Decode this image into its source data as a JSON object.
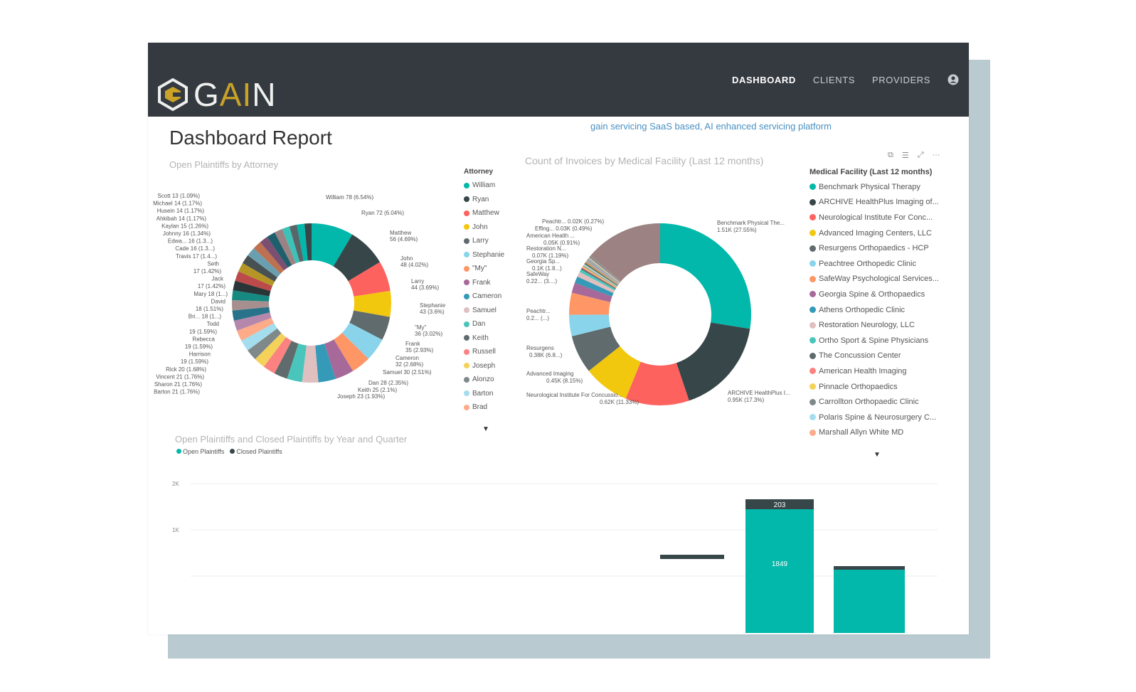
{
  "navbar": {
    "logo_text": "GAIN",
    "items": [
      {
        "label": "DASHBOARD",
        "active": true
      },
      {
        "label": "CLIENTS",
        "active": false
      },
      {
        "label": "PROVIDERS",
        "active": false
      }
    ],
    "user_icon": "user-circle-icon"
  },
  "page": {
    "title": "Dashboard Report",
    "tagline": "gain servicing SaaS based, AI enhanced servicing platform"
  },
  "colors": {
    "navbar": "#343a40",
    "teal": "#01b8aa",
    "dark": "#374649",
    "red": "#fd625e",
    "yellow": "#f2c80f",
    "gray": "#5f6b6d",
    "lightblue": "#8ad4eb",
    "orange": "#fe9666",
    "purple": "#a66999",
    "blue": "#3599b8",
    "pink": "#dfbfbf"
  },
  "attorney_panel": {
    "title": "Open Plaintiffs by Attorney",
    "legend_title": "Attorney",
    "legend": [
      {
        "name": "William",
        "color": "#01b8aa"
      },
      {
        "name": "Ryan",
        "color": "#374649"
      },
      {
        "name": "Matthew",
        "color": "#fd625e"
      },
      {
        "name": "John",
        "color": "#f2c80f"
      },
      {
        "name": "Larry",
        "color": "#5f6b6d"
      },
      {
        "name": "Stephanie",
        "color": "#8ad4eb"
      },
      {
        "name": "\"My\"",
        "color": "#fe9666"
      },
      {
        "name": "Frank",
        "color": "#a66999"
      },
      {
        "name": "Cameron",
        "color": "#3599b8"
      },
      {
        "name": "Samuel",
        "color": "#dfbfbf"
      },
      {
        "name": "Dan",
        "color": "#4ac5bb"
      },
      {
        "name": "Keith",
        "color": "#5f6b6d"
      },
      {
        "name": "Russell",
        "color": "#fb8281"
      },
      {
        "name": "Joseph",
        "color": "#f4d25a"
      },
      {
        "name": "Alonzo",
        "color": "#7f898a"
      },
      {
        "name": "Barton",
        "color": "#a4ddee"
      },
      {
        "name": "Brad",
        "color": "#fdab89"
      }
    ],
    "labels_right": [
      "William 78 (6.54%)",
      "Ryan 72 (6.04%)",
      "Matthew",
      "56 (4.69%)",
      "John",
      "48 (4.02%)",
      "Larry",
      "44 (3.69%)",
      "Stephanie",
      "43 (3.6%)",
      "\"My\"",
      "36 (3.02%)",
      "Frank",
      "35 (2.93%)",
      "Cameron",
      "32 (2.68%)",
      "Samuel 30 (2.51%)",
      "Dan 28 (2.35%)",
      "Keith 25 (2.1%)",
      "Joseph 23 (1.93%)"
    ],
    "labels_left": [
      "Scott 13 (1.09%)",
      "Michael 14 (1.17%)",
      "Husein 14 (1.17%)",
      "Ahkibah 14 (1.17%)",
      "Kaylan 15 (1.26%)",
      "Johnny 16 (1.34%)",
      "Edwa... 16 (1.3...)",
      "Cade 16 (1.3...)",
      "Travis 17 (1.4...)",
      "Seth",
      "17 (1.42%)",
      "Jack",
      "17 (1.42%)",
      "Mary 18 (1...)",
      "David",
      "18 (1.51%)",
      "Bri... 18 (1...)",
      "Todd",
      "19 (1.59%)",
      "Rebecca",
      "19 (1.59%)",
      "Harrison",
      "19 (1.59%)",
      "Rick 20 (1.68%)",
      "Vincent 21 (1.76%)",
      "Sharon 21 (1.76%)",
      "Barton 21 (1.76%)"
    ]
  },
  "invoice_panel": {
    "title": "Count of Invoices by Medical Facility (Last 12 months)",
    "legend_title": "Medical Facility (Last 12 months)",
    "legend": [
      {
        "name": "Benchmark Physical Therapy",
        "color": "#01b8aa"
      },
      {
        "name": "ARCHIVE HealthPlus Imaging of...",
        "color": "#374649"
      },
      {
        "name": "Neurological Institute For Conc...",
        "color": "#fd625e"
      },
      {
        "name": "Advanced Imaging Centers, LLC",
        "color": "#f2c80f"
      },
      {
        "name": "Resurgens Orthopaedics - HCP",
        "color": "#5f6b6d"
      },
      {
        "name": "Peachtree Orthopedic Clinic",
        "color": "#8ad4eb"
      },
      {
        "name": "SafeWay Psychological Services...",
        "color": "#fe9666"
      },
      {
        "name": "Georgia Spine & Orthopaedics",
        "color": "#a66999"
      },
      {
        "name": "Athens Orthopedic Clinic",
        "color": "#3599b8"
      },
      {
        "name": "Restoration Neurology, LLC",
        "color": "#dfbfbf"
      },
      {
        "name": "Ortho Sport & Spine Physicians",
        "color": "#4ac5bb"
      },
      {
        "name": "The Concussion Center",
        "color": "#5f6b6d"
      },
      {
        "name": "American Health Imaging",
        "color": "#fb8281"
      },
      {
        "name": "Pinnacle Orthopaedics",
        "color": "#f4d25a"
      },
      {
        "name": "Carrollton Orthopaedic Clinic",
        "color": "#7f898a"
      },
      {
        "name": "Polaris Spine & Neurosurgery C...",
        "color": "#a4ddee"
      },
      {
        "name": "Marshall Allyn White MD",
        "color": "#fdab89"
      }
    ],
    "labels": {
      "benchmark": "Benchmark Physical The...",
      "benchmark_val": "1.51K (27.55%)",
      "archive": "ARCHIVE HealthPlus I...",
      "archive_val": "0.95K (17.3%)",
      "neuro": "Neurological Institute For Concussio...",
      "neuro_val": "0.62K (11.33%)",
      "advanced": "Advanced Imaging",
      "advanced_val": "0.45K (8.15%)",
      "resurgens": "Resurgens",
      "resurgens_val": "0.38K (6.8...)",
      "peachtr": "Peachtr...",
      "peachtr_val": "0.2... (...)",
      "safeway": "SafeWay",
      "safeway_val": "0.22... (3....)",
      "georgia": "Georgia Sp...",
      "georgia_val": "0.1K (1.8...)",
      "restoration": "Restoration N...",
      "restoration_val": "0.07K (1.19%)",
      "american": "American Health ...",
      "american_val": "0.05K (0.91%)",
      "effing": "Effing... 0.03K (0.49%)",
      "peachtr2": "Peachtr... 0.02K (0.27%)"
    }
  },
  "bar_panel": {
    "title": "Open Plaintiffs and Closed Plaintiffs by Year and Quarter",
    "legend": [
      {
        "name": "Open Plaintiffs",
        "color": "#01b8aa"
      },
      {
        "name": "Closed Plaintiffs",
        "color": "#374649"
      }
    ],
    "y_ticks": [
      "2K",
      "1K"
    ],
    "bar_labels": {
      "closed": "203",
      "open": "1849"
    }
  },
  "chart_data": [
    {
      "type": "pie",
      "title": "Open Plaintiffs by Attorney",
      "categories": [
        "William",
        "Ryan",
        "Matthew",
        "John",
        "Larry",
        "Stephanie",
        "\"My\"",
        "Frank",
        "Cameron",
        "Samuel",
        "Dan",
        "Keith",
        "Joseph",
        "Barton",
        "Sharon",
        "Vincent",
        "Rick",
        "Harrison",
        "Rebecca",
        "Todd",
        "Bri...",
        "David",
        "Mary",
        "Jack",
        "Seth",
        "Travis",
        "Cade",
        "Edwa...",
        "Johnny",
        "Kaylan",
        "Ahkibah",
        "Husein",
        "Michael",
        "Scott"
      ],
      "values": [
        78,
        72,
        56,
        48,
        44,
        43,
        36,
        35,
        32,
        30,
        28,
        25,
        23,
        21,
        21,
        21,
        20,
        19,
        19,
        19,
        18,
        18,
        18,
        17,
        17,
        17,
        16,
        16,
        16,
        15,
        14,
        14,
        14,
        13
      ]
    },
    {
      "type": "pie",
      "title": "Count of Invoices by Medical Facility (Last 12 months)",
      "categories": [
        "Benchmark Physical Therapy",
        "ARCHIVE HealthPlus Imaging of...",
        "Neurological Institute For Conc...",
        "Advanced Imaging Centers, LLC",
        "Resurgens Orthopaedics - HCP",
        "Peachtree Orthopedic Clinic",
        "SafeWay Psychological Services...",
        "Georgia Spine & Orthopaedics",
        "Restoration Neurology, LLC",
        "American Health Imaging",
        "Effing...",
        "Peachtr..."
      ],
      "values": [
        27.55,
        17.3,
        11.33,
        8.15,
        6.8,
        3.8,
        3.9,
        1.8,
        1.19,
        0.91,
        0.49,
        0.27
      ]
    },
    {
      "type": "bar",
      "title": "Open Plaintiffs and Closed Plaintiffs by Year and Quarter",
      "series": [
        {
          "name": "Open Plaintiffs",
          "values": [
            null,
            1849,
            null
          ]
        },
        {
          "name": "Closed Plaintiffs",
          "values": [
            null,
            203,
            null
          ]
        }
      ],
      "ylim": [
        0,
        2000
      ]
    }
  ]
}
